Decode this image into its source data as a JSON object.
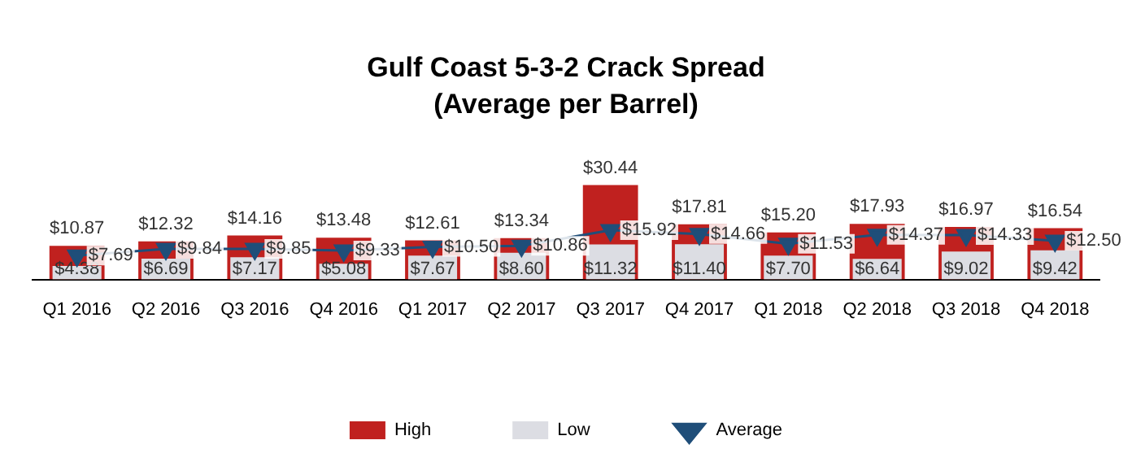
{
  "chart_data": {
    "type": "bar",
    "title": "Gulf Coast 5-3-2 Crack Spread",
    "subtitle": "(Average per Barrel)",
    "categories": [
      "Q1 2016",
      "Q2 2016",
      "Q3 2016",
      "Q4 2016",
      "Q1 2017",
      "Q2 2017",
      "Q3 2017",
      "Q4 2017",
      "Q1 2018",
      "Q2 2018",
      "Q3 2018",
      "Q4 2018"
    ],
    "ylim": [
      0,
      32
    ],
    "tick_labels": "x",
    "legend": "bottom",
    "grid": false,
    "series": [
      {
        "name": "High",
        "color": "#c0211f",
        "values": [
          10.87,
          12.32,
          14.16,
          13.48,
          12.61,
          13.34,
          30.44,
          17.81,
          15.2,
          17.93,
          16.97,
          16.54
        ],
        "value_labels": [
          "$10.87",
          "$12.32",
          "$14.16",
          "$13.48",
          "$12.61",
          "$13.34",
          "$30.44",
          "$17.81",
          "$15.20",
          "$17.93",
          "$16.97",
          "$16.54"
        ]
      },
      {
        "name": "Low",
        "color": "#dcdde3",
        "values": [
          4.38,
          6.69,
          7.17,
          5.08,
          7.67,
          8.6,
          11.32,
          11.4,
          7.7,
          6.64,
          9.02,
          9.42
        ],
        "value_labels": [
          "$4.38",
          "$6.69",
          "$7.17",
          "$5.08",
          "$7.67",
          "$8.60",
          "$11.32",
          "$11.40",
          "$7.70",
          "$6.64",
          "$9.02",
          "$9.42"
        ]
      },
      {
        "name": "Average",
        "type": "line",
        "color": "#1f4e79",
        "marker": "triangle",
        "values": [
          7.69,
          9.84,
          9.85,
          9.33,
          10.5,
          10.86,
          15.92,
          14.66,
          11.53,
          14.37,
          14.33,
          12.5
        ],
        "value_labels": [
          "$7.69",
          "$9.84",
          "$9.85",
          "$9.33",
          "$10.50",
          "$10.86",
          "$15.92",
          "$14.66",
          "$11.53",
          "$14.37",
          "$14.33",
          "$12.50"
        ]
      }
    ]
  }
}
